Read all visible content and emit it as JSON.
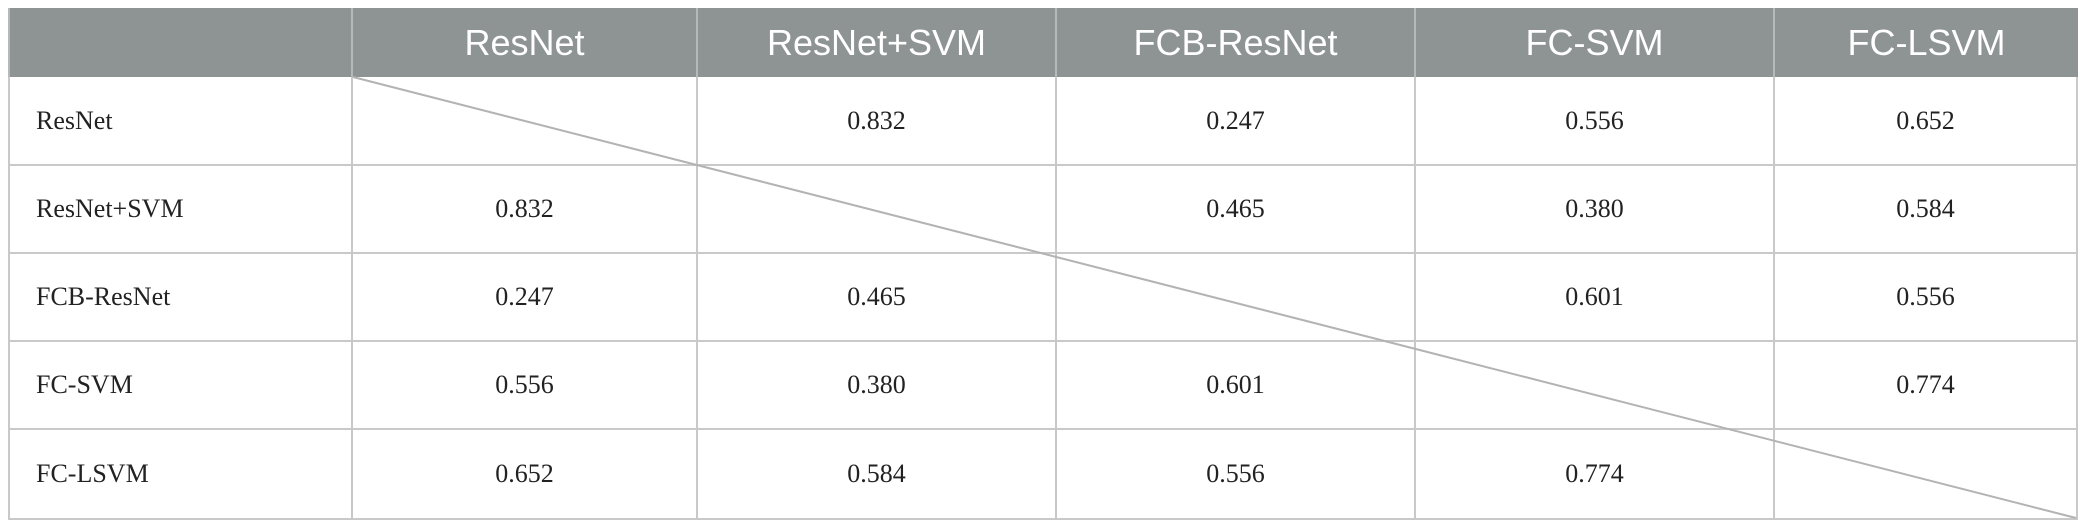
{
  "columns": [
    "ResNet",
    "ResNet+SVM",
    "FCB-ResNet",
    "FC-SVM",
    "FC-LSVM"
  ],
  "rows": [
    {
      "label": "ResNet",
      "values": [
        "",
        "0.832",
        "0.247",
        "0.556",
        "0.652"
      ]
    },
    {
      "label": "ResNet+SVM",
      "values": [
        "0.832",
        "",
        "0.465",
        "0.380",
        "0.584"
      ]
    },
    {
      "label": "FCB-ResNet",
      "values": [
        "0.247",
        "0.465",
        "",
        "0.601",
        "0.556"
      ]
    },
    {
      "label": "FC-SVM",
      "values": [
        "0.556",
        "0.380",
        "0.601",
        "",
        "0.774"
      ]
    },
    {
      "label": "FC-LSVM",
      "values": [
        "0.652",
        "0.584",
        "0.556",
        "0.774",
        ""
      ]
    }
  ],
  "colors": {
    "header_bg": "#8e9393",
    "header_text": "#ffffff",
    "border": "#c9c9c9",
    "text": "#222222"
  }
}
